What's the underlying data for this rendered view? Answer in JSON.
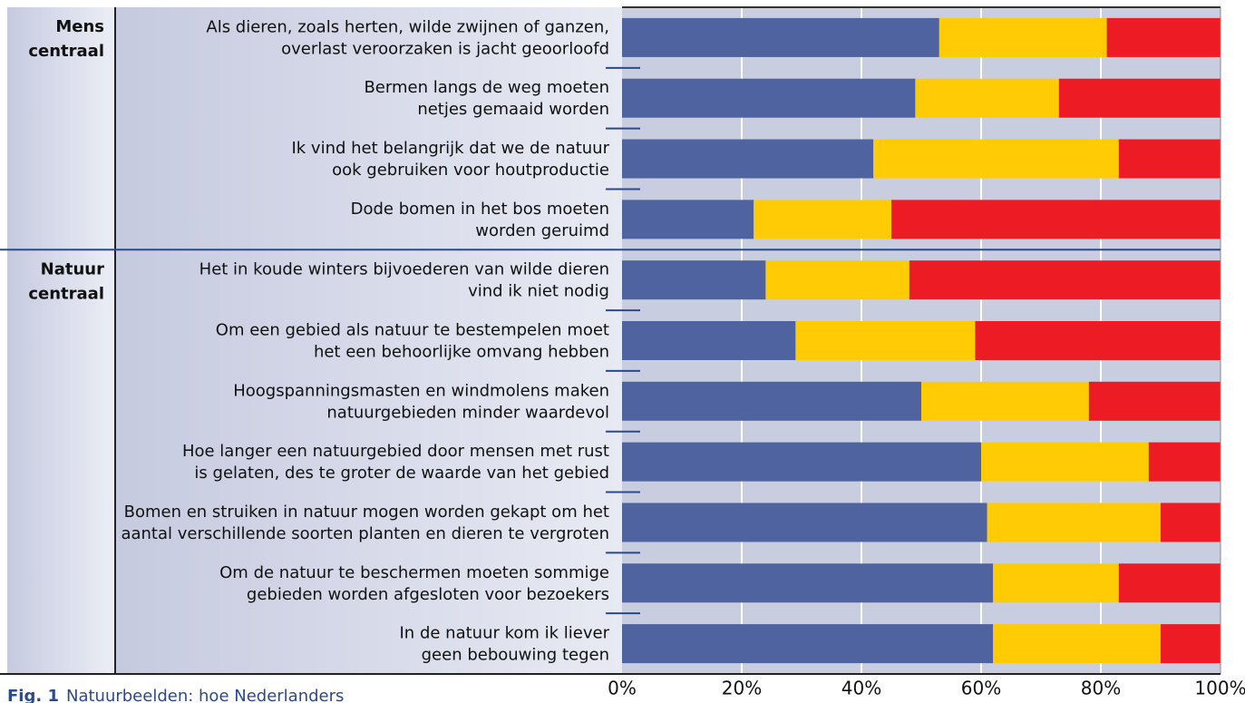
{
  "chart_data": {
    "type": "stacked_bar_horizontal",
    "groups": [
      {
        "label": [
          "Mens",
          "centraal"
        ],
        "categories": [
          [
            "Als dieren, zoals herten, wilde zwijnen of ganzen,",
            "overlast veroorzaken is jacht geoorloofd"
          ],
          [
            "Bermen langs de weg moeten",
            "netjes gemaaid worden"
          ],
          [
            "Ik vind het belangrijk dat we de natuur",
            "ook gebruiken voor houtproductie"
          ],
          [
            "Dode bomen in het bos moeten",
            "worden geruimd"
          ]
        ]
      },
      {
        "label": [
          "Natuur",
          "centraal"
        ],
        "categories": [
          [
            "Het in koude winters bijvoederen van wilde dieren",
            "vind ik niet nodig"
          ],
          [
            "Om een gebied als natuur te bestempelen moet",
            "het een behoorlijke omvang hebben"
          ],
          [
            "Hoogspanningsmasten en windmolens maken",
            "natuurgebieden minder waardevol"
          ],
          [
            "Hoe langer een natuurgebied door mensen met rust",
            "is gelaten, des te groter de waarde van het gebied"
          ],
          [
            "Bomen en struiken in natuur mogen worden gekapt om het",
            "aantal verschillende soorten planten en dieren te vergroten"
          ],
          [
            "Om de natuur te beschermen moeten sommige",
            "gebieden worden afgesloten voor bezoekers"
          ],
          [
            "In de natuur kom ik liever",
            "geen bebouwing tegen"
          ]
        ]
      }
    ],
    "series": [
      {
        "color": "#4f63a0",
        "values": [
          [
            53,
            49,
            42,
            22
          ],
          [
            24,
            29,
            50,
            60,
            61,
            62,
            62
          ]
        ]
      },
      {
        "color": "#ffcb05",
        "values": [
          [
            28,
            24,
            41,
            23
          ],
          [
            24,
            30,
            28,
            28,
            29,
            21,
            28
          ]
        ]
      },
      {
        "color": "#ed1c24",
        "values": [
          [
            19,
            27,
            17,
            55
          ],
          [
            52,
            41,
            22,
            12,
            10,
            17,
            10
          ]
        ]
      }
    ],
    "xlim": [
      0,
      100
    ],
    "xticks": [
      {
        "value": 0,
        "label": "0%"
      },
      {
        "value": 20,
        "label": "20%"
      },
      {
        "value": 40,
        "label": "40%"
      },
      {
        "value": 60,
        "label": "60%"
      },
      {
        "value": 80,
        "label": "80%"
      },
      {
        "value": 100,
        "label": "100%"
      }
    ],
    "grid": true,
    "caption": {
      "number": "Fig. 1",
      "text": "Natuurbeelden: hoe Nederlanders"
    }
  }
}
